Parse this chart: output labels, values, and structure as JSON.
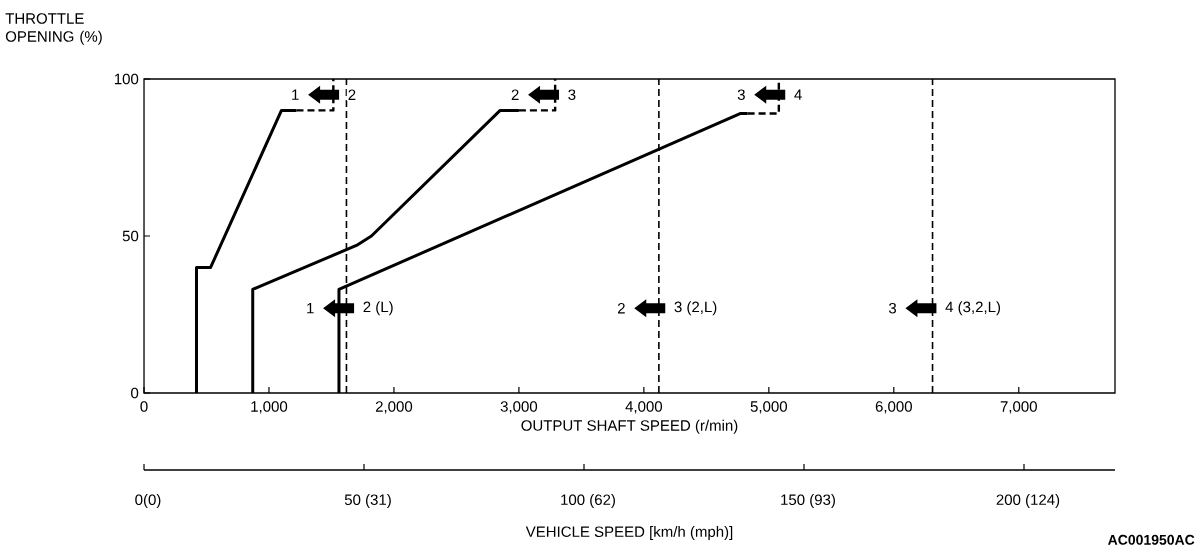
{
  "chart_data": {
    "type": "line",
    "xlabel": "OUTPUT SHAFT SPEED (r/min)",
    "ylabel": "THROTTLE OPENING (%)",
    "x2label": "VEHICLE SPEED [km/h (mph)]",
    "xlim": [
      0,
      7770
    ],
    "xticks": [
      0,
      {
        "value": 1000,
        "label": "1,000"
      },
      {
        "value": 2000,
        "label": "2,000"
      },
      {
        "value": 3000,
        "label": "3,000"
      },
      {
        "value": 4000,
        "label": "4,000"
      },
      {
        "value": 5000,
        "label": "5,000"
      },
      {
        "value": 6000,
        "label": "6,000"
      },
      {
        "value": 7000,
        "label": "7,000"
      }
    ],
    "ylim": [
      0,
      100
    ],
    "yticks": [
      0,
      50,
      100
    ],
    "grid": false,
    "marker": "none",
    "series": [
      {
        "color": "#000000",
        "line_style": "solid",
        "x": [
          420,
          420,
          533,
          1100,
          1220
        ],
        "values": [
          0,
          40,
          40,
          90,
          90
        ]
      },
      {
        "color": "#000000",
        "line_style": "dashed",
        "x": [
          1220,
          1515,
          1515
        ],
        "values": [
          90,
          90,
          100
        ]
      },
      {
        "color": "#000000",
        "line_style": "solid",
        "x": [
          870,
          870,
          1700,
          1820,
          2850,
          3000
        ],
        "values": [
          0,
          33,
          47,
          50,
          90,
          90
        ]
      },
      {
        "color": "#000000",
        "line_style": "dashed",
        "x": [
          3000,
          3290,
          3290
        ],
        "values": [
          90,
          90,
          100
        ]
      },
      {
        "color": "#000000",
        "line_style": "solid",
        "x": [
          1560,
          1560,
          4770,
          4830
        ],
        "values": [
          0,
          33,
          89,
          89
        ]
      },
      {
        "color": "#000000",
        "line_style": "dashed",
        "x": [
          4830,
          5080,
          5080
        ],
        "values": [
          89,
          89,
          100
        ]
      }
    ],
    "ref_lines": [
      {
        "axis": "x",
        "value": 1620,
        "line_style": "dashed",
        "color": "#000000"
      },
      {
        "axis": "x",
        "value": 4120,
        "line_style": "dashed",
        "color": "#000000"
      },
      {
        "axis": "x",
        "value": 6310,
        "line_style": "dashed",
        "color": "#000000"
      }
    ],
    "annotations": [
      "0(0)",
      "50 (31)",
      "100 (62)",
      "150 (93)",
      "200 (124)",
      {
        "text": "1",
        "x": 1210,
        "y": 95
      },
      "2",
      {
        "text": "2",
        "x": 2970,
        "y": 95
      },
      "3",
      {
        "text": "3",
        "x": 4780,
        "y": 95
      },
      "4",
      {
        "text": "1",
        "x": 1330,
        "y": 27
      },
      "2 (L)",
      {
        "text": "2",
        "x": 3820,
        "y": 27
      },
      "3 (2,L)",
      {
        "text": "3",
        "x": 5990,
        "y": 27
      },
      "4 (3,2,L)",
      "AC001950AC"
    ]
  }
}
